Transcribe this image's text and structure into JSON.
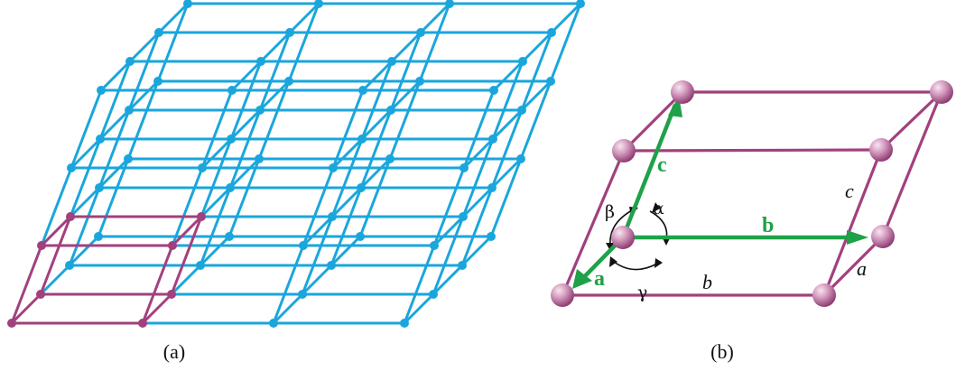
{
  "panel_a": {
    "caption": "(a)"
  },
  "panel_b": {
    "caption": "(b)",
    "vectors": {
      "a": "a",
      "b": "b",
      "c": "c"
    },
    "edges": {
      "a": "a",
      "b": "b",
      "c": "c"
    },
    "angles": {
      "alpha": "α",
      "beta": "β",
      "gamma": "γ"
    }
  },
  "colors": {
    "lattice": "#1aa6dc",
    "unit_cell": "#a2407e",
    "vectors": "#1fa149"
  }
}
